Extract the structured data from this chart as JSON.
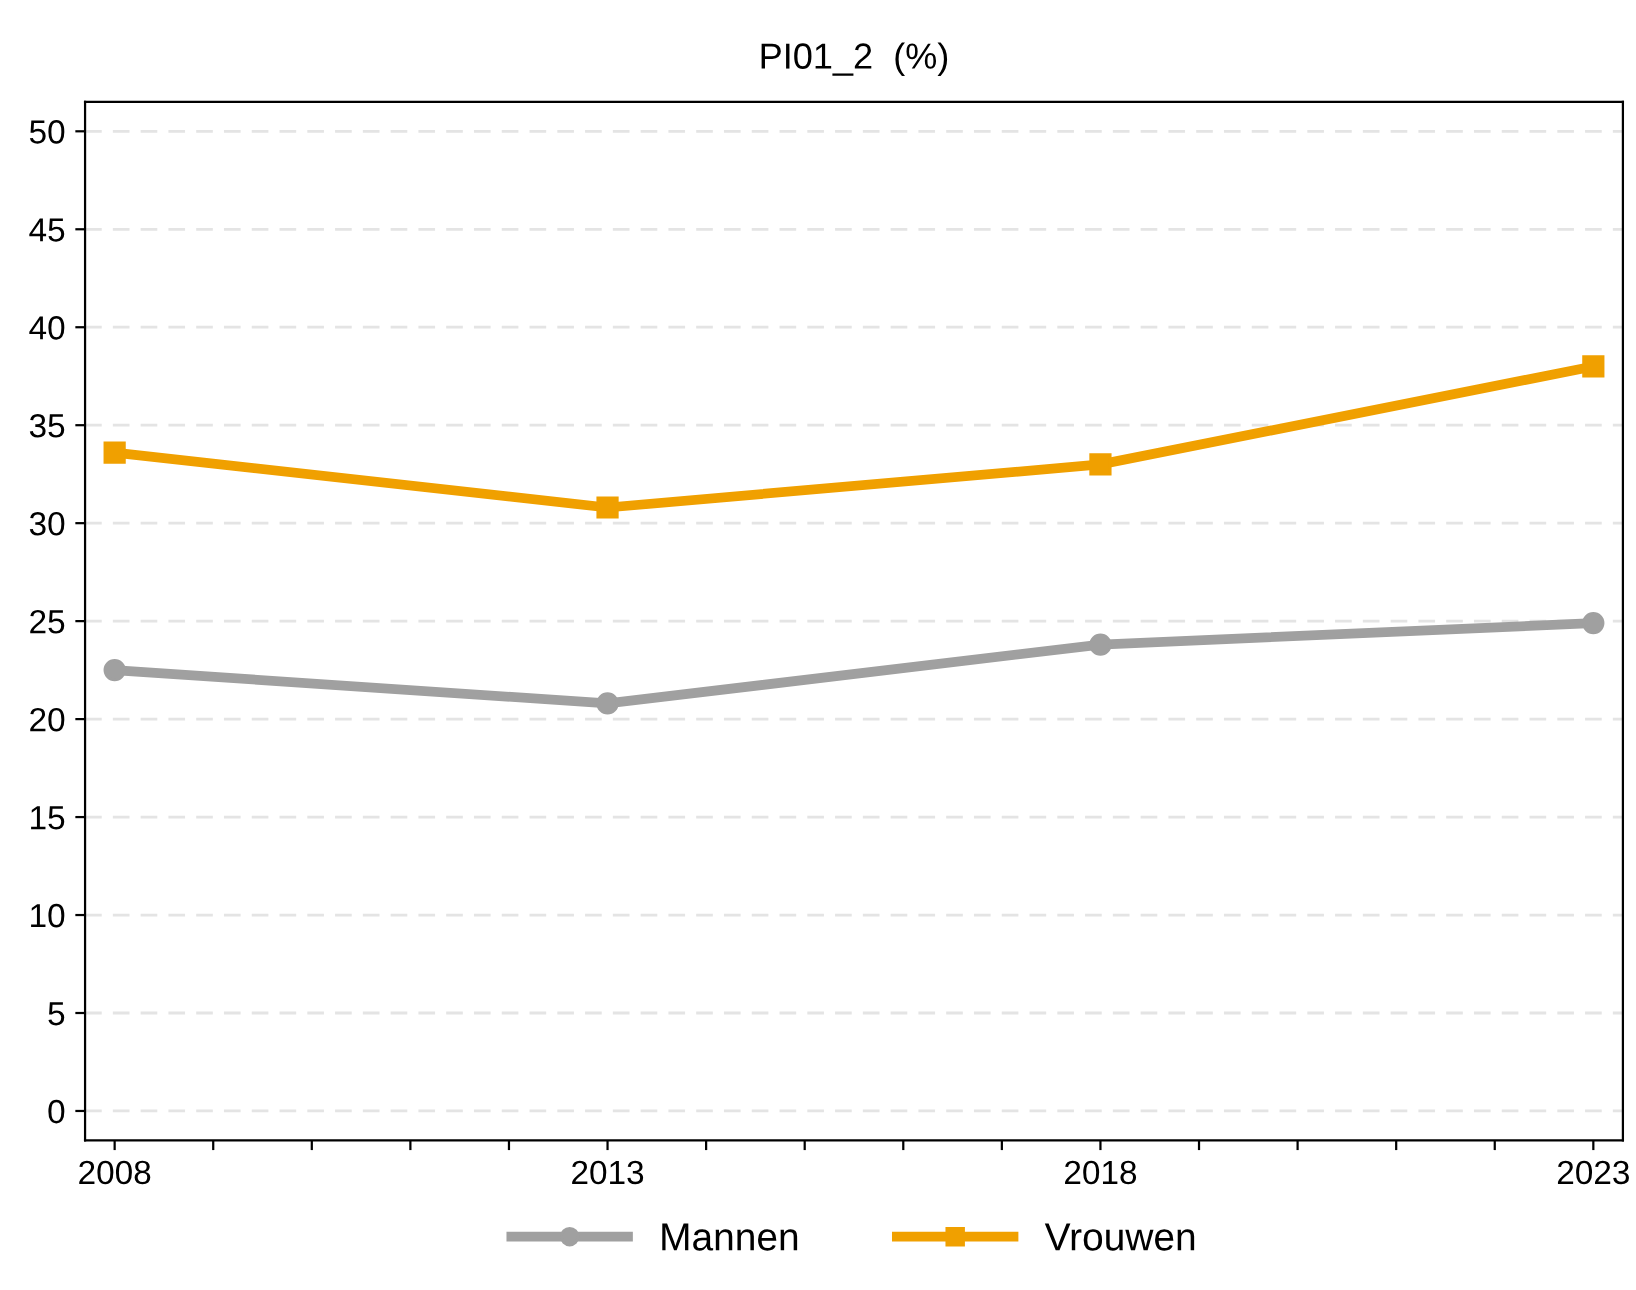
{
  "chart_data": {
    "type": "line",
    "title": "PI01_2  (%)",
    "x": [
      2008,
      2013,
      2018,
      2023
    ],
    "series": [
      {
        "name": "Mannen",
        "color": "#a0a0a0",
        "marker": "circle",
        "values": [
          22.5,
          20.8,
          23.8,
          24.9
        ]
      },
      {
        "name": "Vrouwen",
        "color": "#f0a000",
        "marker": "square",
        "values": [
          33.6,
          30.8,
          33.0,
          38.0
        ]
      }
    ],
    "xlim": [
      2007.7,
      2023.3
    ],
    "xticks": [
      2008,
      {
        "value": 2009,
        "label": null
      },
      {
        "value": 2010,
        "label": null
      },
      {
        "value": 2011,
        "label": null
      },
      {
        "value": 2012,
        "label": null
      },
      2013,
      {
        "value": 2014,
        "label": null
      },
      {
        "value": 2015,
        "label": null
      },
      {
        "value": 2016,
        "label": null
      },
      {
        "value": 2017,
        "label": null
      },
      2018,
      {
        "value": 2019,
        "label": null
      },
      {
        "value": 2020,
        "label": null
      },
      {
        "value": 2021,
        "label": null
      },
      {
        "value": 2022,
        "label": null
      },
      2023
    ],
    "ylim": [
      -1.5,
      51.5
    ],
    "yticks": [
      0,
      5,
      10,
      15,
      20,
      25,
      30,
      35,
      40,
      45,
      50
    ],
    "grid": "y",
    "legend": "bottom",
    "line_style": "solid"
  }
}
